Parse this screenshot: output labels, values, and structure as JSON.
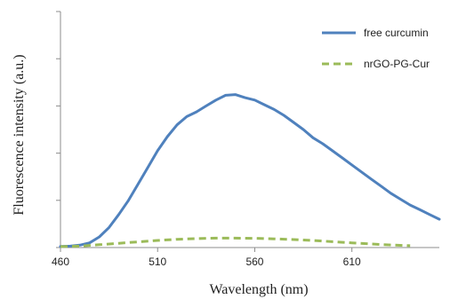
{
  "chart_data": {
    "type": "line",
    "title": "",
    "xlabel": "Wavelength (nm)",
    "ylabel": "Fluorescence intensity (a.u.)",
    "xlim": [
      460,
      655
    ],
    "ylim": [
      0,
      1
    ],
    "xticks": [
      460,
      510,
      560,
      610
    ],
    "yticks": [
      0,
      0.2,
      0.4,
      0.6,
      0.8,
      1.0
    ],
    "grid": false,
    "legend_position": "top-right",
    "series": [
      {
        "name": "free curcumin",
        "color": "#4f81bd",
        "style": "solid",
        "x": [
          460,
          465,
          470,
          475,
          480,
          485,
          490,
          495,
          500,
          505,
          510,
          515,
          520,
          525,
          530,
          535,
          540,
          545,
          550,
          555,
          560,
          565,
          570,
          575,
          580,
          585,
          590,
          595,
          600,
          605,
          610,
          615,
          620,
          625,
          630,
          635,
          640,
          645,
          650,
          655
        ],
        "y": [
          0.005,
          0.006,
          0.01,
          0.02,
          0.045,
          0.085,
          0.14,
          0.2,
          0.27,
          0.34,
          0.41,
          0.47,
          0.52,
          0.555,
          0.575,
          0.6,
          0.625,
          0.645,
          0.648,
          0.635,
          0.625,
          0.605,
          0.585,
          0.56,
          0.53,
          0.5,
          0.465,
          0.44,
          0.41,
          0.38,
          0.35,
          0.32,
          0.29,
          0.26,
          0.23,
          0.205,
          0.18,
          0.16,
          0.14,
          0.12
        ]
      },
      {
        "name": "nrGO-PG-Cur",
        "color": "#9bbb59",
        "style": "dashed",
        "x": [
          460,
          470,
          480,
          490,
          500,
          510,
          520,
          530,
          540,
          550,
          560,
          570,
          580,
          590,
          600,
          610,
          620,
          630,
          640
        ],
        "y": [
          0.004,
          0.006,
          0.012,
          0.018,
          0.024,
          0.03,
          0.035,
          0.038,
          0.04,
          0.04,
          0.039,
          0.037,
          0.034,
          0.03,
          0.025,
          0.02,
          0.015,
          0.011,
          0.008
        ]
      }
    ]
  }
}
